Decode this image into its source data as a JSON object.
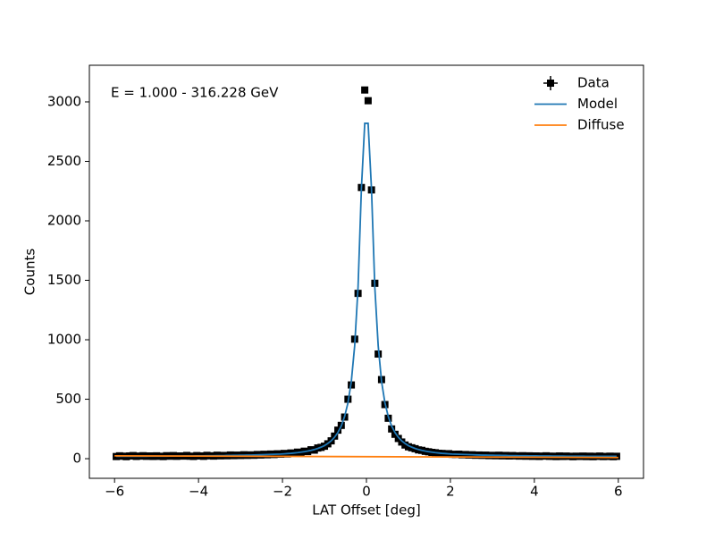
{
  "chart_data": {
    "type": "line",
    "annotation": "E = 1.000 - 316.228 GeV",
    "xlabel": "LAT Offset [deg]",
    "ylabel": "Counts",
    "xlim": [
      -6.6,
      6.6
    ],
    "ylim": [
      -165,
      3308
    ],
    "xticks": [
      {
        "value": -6,
        "label": "−6"
      },
      {
        "value": -4,
        "label": "−4"
      },
      {
        "value": -2,
        "label": "−2"
      },
      0,
      2,
      4,
      6
    ],
    "yticks": [
      0,
      500,
      1000,
      1500,
      2000,
      2500,
      3000
    ],
    "legend": "upper right",
    "x": [
      -5.96,
      -5.88,
      -5.8,
      -5.72,
      -5.64,
      -5.56,
      -5.48,
      -5.4,
      -5.32,
      -5.24,
      -5.16,
      -5.08,
      -5.0,
      -4.92,
      -4.84,
      -4.76,
      -4.68,
      -4.6,
      -4.52,
      -4.44,
      -4.36,
      -4.28,
      -4.2,
      -4.12,
      -4.04,
      -3.96,
      -3.88,
      -3.8,
      -3.72,
      -3.64,
      -3.56,
      -3.48,
      -3.4,
      -3.32,
      -3.24,
      -3.16,
      -3.08,
      -3.0,
      -2.92,
      -2.84,
      -2.76,
      -2.68,
      -2.6,
      -2.52,
      -2.44,
      -2.36,
      -2.28,
      -2.2,
      -2.12,
      -2.04,
      -1.96,
      -1.88,
      -1.8,
      -1.72,
      -1.64,
      -1.56,
      -1.48,
      -1.4,
      -1.32,
      -1.24,
      -1.16,
      -1.08,
      -1.0,
      -0.92,
      -0.84,
      -0.76,
      -0.68,
      -0.6,
      -0.52,
      -0.44,
      -0.36,
      -0.28,
      -0.2,
      -0.12,
      -0.04,
      0.04,
      0.12,
      0.2,
      0.28,
      0.36,
      0.44,
      0.52,
      0.6,
      0.68,
      0.76,
      0.84,
      0.92,
      1.0,
      1.08,
      1.16,
      1.24,
      1.32,
      1.4,
      1.48,
      1.56,
      1.64,
      1.72,
      1.8,
      1.88,
      1.96,
      2.04,
      2.12,
      2.2,
      2.28,
      2.36,
      2.44,
      2.52,
      2.6,
      2.68,
      2.76,
      2.84,
      2.92,
      3.0,
      3.08,
      3.16,
      3.24,
      3.32,
      3.4,
      3.48,
      3.56,
      3.64,
      3.72,
      3.8,
      3.88,
      3.96,
      4.04,
      4.12,
      4.2,
      4.28,
      4.36,
      4.44,
      4.52,
      4.6,
      4.68,
      4.76,
      4.84,
      4.92,
      5.0,
      5.08,
      5.16,
      5.24,
      5.32,
      5.4,
      5.48,
      5.56,
      5.64,
      5.72,
      5.8,
      5.88,
      5.96
    ],
    "series": [
      {
        "name": "Data",
        "color": "#000000",
        "marker": "square",
        "values": [
          18,
          24,
          21,
          17,
          23,
          26,
          19,
          22,
          25,
          20,
          23,
          19,
          24,
          20,
          18,
          25,
          21,
          26,
          20,
          23,
          22,
          27,
          21,
          19,
          26,
          23,
          20,
          28,
          24,
          22,
          29,
          24,
          27,
          25,
          31,
          26,
          30,
          27,
          33,
          28,
          32,
          29,
          35,
          31,
          37,
          33,
          39,
          35,
          41,
          38,
          44,
          40,
          48,
          46,
          55,
          52,
          63,
          60,
          75,
          72,
          90,
          95,
          105,
          125,
          150,
          190,
          240,
          280,
          350,
          500,
          620,
          1005,
          1390,
          2280,
          3100,
          3010,
          2260,
          1475,
          880,
          665,
          455,
          340,
          250,
          205,
          170,
          140,
          115,
          100,
          92,
          84,
          74,
          70,
          62,
          58,
          53,
          50,
          45,
          44,
          40,
          42,
          37,
          36,
          38,
          33,
          35,
          31,
          33,
          29,
          31,
          28,
          30,
          26,
          28,
          25,
          29,
          24,
          27,
          23,
          26,
          24,
          22,
          25,
          21,
          24,
          20,
          23,
          19,
          22,
          24,
          20,
          21,
          18,
          23,
          19,
          22,
          20,
          17,
          21,
          19,
          22,
          18,
          21,
          17,
          20,
          22,
          18,
          19,
          21,
          17,
          20
        ]
      },
      {
        "name": "Model",
        "color": "#1f77b4",
        "values": [
          20,
          20,
          20,
          20,
          20,
          20,
          20,
          20,
          20,
          20,
          21,
          21,
          21,
          21,
          21,
          21,
          22,
          22,
          22,
          22,
          23,
          23,
          23,
          23,
          24,
          24,
          24,
          25,
          25,
          25,
          26,
          26,
          26,
          27,
          27,
          28,
          28,
          29,
          29,
          30,
          30,
          31,
          32,
          33,
          34,
          35,
          36,
          37,
          38,
          39,
          41,
          43,
          45,
          48,
          51,
          55,
          59,
          64,
          70,
          77,
          86,
          97,
          110,
          128,
          150,
          180,
          220,
          275,
          355,
          470,
          650,
          950,
          1440,
          2270,
          2820,
          2820,
          2270,
          1440,
          950,
          650,
          470,
          355,
          275,
          220,
          180,
          150,
          128,
          110,
          97,
          86,
          77,
          70,
          64,
          59,
          55,
          51,
          48,
          45,
          43,
          41,
          39,
          38,
          37,
          36,
          35,
          34,
          33,
          32,
          31,
          30,
          30,
          29,
          29,
          28,
          28,
          27,
          27,
          26,
          26,
          26,
          25,
          25,
          25,
          24,
          24,
          24,
          23,
          23,
          23,
          23,
          22,
          22,
          22,
          22,
          21,
          21,
          21,
          21,
          21,
          21,
          20,
          20,
          20,
          20,
          20,
          20,
          20,
          20,
          20,
          20
        ]
      },
      {
        "name": "Diffuse",
        "color": "#ff7f0e",
        "x": [
          -6,
          6
        ],
        "values": [
          24,
          10
        ]
      }
    ]
  }
}
